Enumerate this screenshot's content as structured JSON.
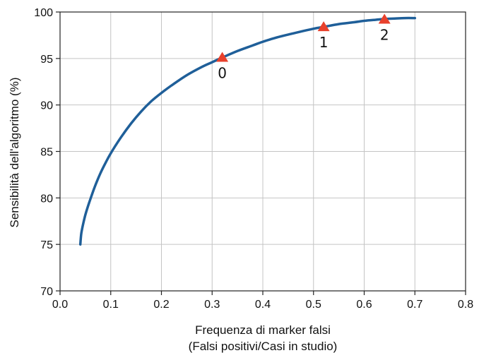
{
  "chart_data": {
    "type": "line",
    "xlabel": "Frequenza di marker falsi",
    "xlabel_line2": "(Falsi positivi/Casi in studio)",
    "ylabel": "Sensibilità dell'algoritmo (%)",
    "xlim": [
      0.0,
      0.8
    ],
    "ylim": [
      70,
      100
    ],
    "xticks": [
      0.0,
      0.1,
      0.2,
      0.3,
      0.4,
      0.5,
      0.6,
      0.7,
      0.8
    ],
    "xtick_labels": [
      "0.0",
      "0.1",
      "0.2",
      "0.3",
      "0.4",
      "0.5",
      "0.6",
      "0.7",
      "0.8"
    ],
    "yticks": [
      70,
      75,
      80,
      85,
      90,
      95,
      100
    ],
    "ytick_labels": [
      "70",
      "75",
      "80",
      "85",
      "90",
      "95",
      "100"
    ],
    "grid": true,
    "series": [
      {
        "color": "#1f5f99",
        "x": [
          0.04,
          0.042,
          0.046,
          0.05,
          0.055,
          0.06,
          0.07,
          0.08,
          0.09,
          0.1,
          0.12,
          0.14,
          0.16,
          0.18,
          0.2,
          0.22,
          0.25,
          0.28,
          0.3,
          0.32,
          0.35,
          0.38,
          0.4,
          0.43,
          0.46,
          0.5,
          0.52,
          0.55,
          0.58,
          0.6,
          0.62,
          0.64,
          0.66,
          0.68,
          0.7
        ],
        "y": [
          75.0,
          76.2,
          77.3,
          78.2,
          79.1,
          79.9,
          81.4,
          82.7,
          83.8,
          84.8,
          86.5,
          88.0,
          89.3,
          90.4,
          91.3,
          92.1,
          93.2,
          94.1,
          94.6,
          95.1,
          95.8,
          96.4,
          96.8,
          97.3,
          97.7,
          98.2,
          98.4,
          98.7,
          98.9,
          99.05,
          99.15,
          99.25,
          99.3,
          99.35,
          99.35
        ]
      }
    ],
    "markers": [
      {
        "label": "0",
        "x": 0.32,
        "y": 95.1,
        "color": "#e8412c"
      },
      {
        "label": "1",
        "x": 0.52,
        "y": 98.4,
        "color": "#e8412c"
      },
      {
        "label": "2",
        "x": 0.64,
        "y": 99.2,
        "color": "#e8412c"
      }
    ]
  }
}
